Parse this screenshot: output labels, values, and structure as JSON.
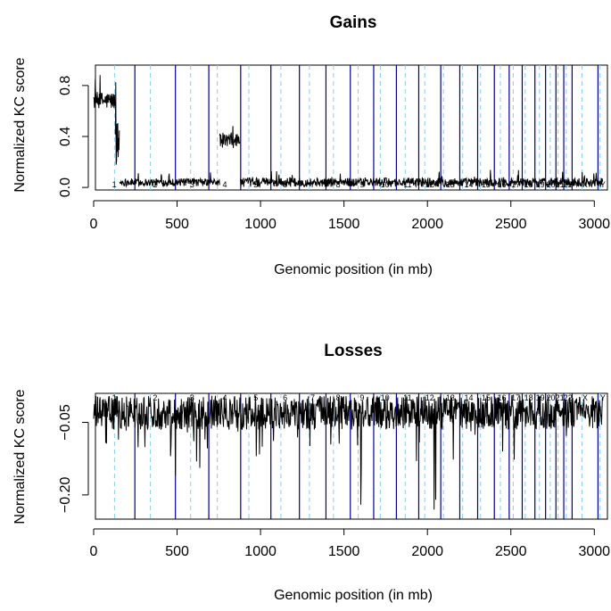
{
  "colors": {
    "boundary": "#00008B",
    "centromere": "#87CEEB",
    "trace": "#000000",
    "axes": "#000000"
  },
  "chart_data": [
    {
      "type": "line",
      "title": "Gains",
      "xlabel": "Genomic position (in mb)",
      "ylabel": "Normalized KC score",
      "xlim": [
        0,
        3100
      ],
      "ylim": [
        -0.02,
        0.96
      ],
      "x_ticks": [
        0,
        500,
        1000,
        1500,
        2000,
        2500,
        3000
      ],
      "x_tick_labels": [
        "0",
        "500",
        "1000",
        "1500",
        "2000",
        "2500",
        "3000"
      ],
      "y_ticks": [
        0.0,
        0.4,
        0.8
      ],
      "y_tick_labels": [
        "0.0",
        "0.4",
        "0.8"
      ],
      "grid": false,
      "chromosome_label_position": "bottom",
      "chromosomes": [
        "1",
        "2",
        "3",
        "4",
        "5",
        "6",
        "7",
        "8",
        "9",
        "10",
        "11",
        "12",
        "13",
        "14",
        "15",
        "16",
        "17",
        "18",
        "19",
        "20",
        "21",
        "22",
        "X",
        "Y"
      ],
      "chromosome_boundaries_mb": [
        0,
        247,
        490,
        690,
        881,
        1062,
        1233,
        1392,
        1538,
        1678,
        1814,
        1948,
        2080,
        2194,
        2301,
        2401,
        2490,
        2568,
        2644,
        2708,
        2770,
        2817,
        2867,
        3022,
        3080
      ],
      "centromeres_mb": [
        125,
        340,
        581,
        741,
        930,
        1122,
        1293,
        1437,
        1585,
        1718,
        1867,
        1984,
        2096,
        2211,
        2318,
        2437,
        2514,
        2586,
        2671,
        2736,
        2783,
        2832,
        2926,
        3034
      ],
      "segments": [
        {
          "x_start": 0,
          "x_end": 130,
          "level": 0.68,
          "noise": 0.07
        },
        {
          "x_start": 130,
          "x_end": 155,
          "level": 0.35,
          "noise": 0.18
        },
        {
          "x_start": 155,
          "x_end": 755,
          "level": 0.04,
          "noise": 0.03
        },
        {
          "x_start": 755,
          "x_end": 878,
          "level": 0.37,
          "noise": 0.06
        },
        {
          "x_start": 880,
          "x_end": 3050,
          "level": 0.04,
          "noise": 0.035
        }
      ]
    },
    {
      "type": "line",
      "title": "Losses",
      "xlabel": "Genomic position (in mb)",
      "ylabel": "Normalized KC score",
      "xlim": [
        0,
        3100
      ],
      "ylim": [
        -0.25,
        0.01
      ],
      "x_ticks": [
        0,
        500,
        1000,
        1500,
        2000,
        2500,
        3000
      ],
      "x_tick_labels": [
        "0",
        "500",
        "1000",
        "1500",
        "2000",
        "2500",
        "3000"
      ],
      "y_ticks": [
        -0.05,
        -0.2
      ],
      "y_tick_labels": [
        "−0.05",
        "−0.20"
      ],
      "grid": false,
      "chromosome_label_position": "top",
      "chromosomes": [
        "1",
        "2",
        "3",
        "4",
        "5",
        "6",
        "7",
        "8",
        "9",
        "10",
        "11",
        "12",
        "13",
        "14",
        "15",
        "16",
        "17",
        "18",
        "19",
        "20",
        "21",
        "22",
        "X",
        "Y"
      ],
      "chromosome_boundaries_mb": [
        0,
        247,
        490,
        690,
        881,
        1062,
        1233,
        1392,
        1538,
        1678,
        1814,
        1948,
        2080,
        2194,
        2301,
        2401,
        2490,
        2568,
        2644,
        2708,
        2770,
        2817,
        2867,
        3022,
        3080
      ],
      "centromeres_mb": [
        125,
        340,
        581,
        741,
        930,
        1122,
        1293,
        1437,
        1585,
        1718,
        1867,
        1984,
        2096,
        2211,
        2318,
        2437,
        2514,
        2586,
        2671,
        2736,
        2783,
        2832,
        2926,
        3034
      ],
      "segments": [
        {
          "x_start": 0,
          "x_end": 3050,
          "level": -0.03,
          "noise": 0.035
        }
      ],
      "notable_dips": [
        {
          "x": 460,
          "y": -0.12
        },
        {
          "x": 490,
          "y": -0.16
        },
        {
          "x": 975,
          "y": -0.12
        },
        {
          "x": 1010,
          "y": -0.1
        },
        {
          "x": 1600,
          "y": -0.22
        },
        {
          "x": 1935,
          "y": -0.13
        },
        {
          "x": 2040,
          "y": -0.23
        },
        {
          "x": 2050,
          "y": -0.21
        },
        {
          "x": 2450,
          "y": -0.11
        }
      ]
    }
  ]
}
